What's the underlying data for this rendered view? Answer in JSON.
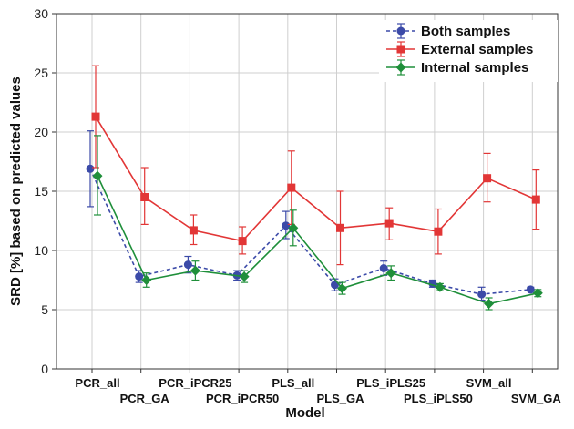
{
  "chart_data": {
    "type": "line",
    "xlabel": "Model",
    "ylabel": "SRD [%] based on predicted values",
    "ylim": [
      0,
      30
    ],
    "yticks": [
      0,
      5,
      10,
      15,
      20,
      25,
      30
    ],
    "grid": true,
    "legend_position": "top-right",
    "categories": [
      "PCR_all",
      "PCR_GA",
      "PCR_iPCR25",
      "PCR_iPCR50",
      "PLS_all",
      "PLS_GA",
      "PLS_iPLS25",
      "PLS_iPLS50",
      "SVM_all",
      "SVM_GA"
    ],
    "series": [
      {
        "name": "Both samples",
        "color": "#3b4aa8",
        "line_style": "dashed",
        "marker": "circle",
        "values": [
          16.9,
          7.8,
          8.8,
          7.9,
          12.1,
          7.1,
          8.5,
          7.2,
          6.3,
          6.7
        ],
        "err_low": [
          13.7,
          7.3,
          8.1,
          7.5,
          11.0,
          6.6,
          7.9,
          6.9,
          5.8,
          6.6
        ],
        "err_high": [
          20.1,
          8.3,
          9.5,
          8.3,
          13.3,
          7.6,
          9.1,
          7.5,
          6.9,
          6.9
        ]
      },
      {
        "name": "External samples",
        "color": "#e23636",
        "line_style": "solid",
        "marker": "square",
        "values": [
          21.3,
          14.5,
          11.7,
          10.8,
          15.3,
          11.9,
          12.3,
          11.6,
          16.1,
          14.3
        ],
        "err_low": [
          17.0,
          12.2,
          10.5,
          9.7,
          12.2,
          8.8,
          10.9,
          9.7,
          14.1,
          11.8
        ],
        "err_high": [
          25.6,
          17.0,
          13.0,
          12.0,
          18.4,
          15.0,
          13.6,
          13.5,
          18.2,
          16.8
        ]
      },
      {
        "name": "Internal samples",
        "color": "#1f8f3a",
        "line_style": "solid",
        "marker": "diamond",
        "values": [
          16.3,
          7.5,
          8.3,
          7.8,
          11.9,
          6.8,
          8.1,
          6.9,
          5.5,
          6.4
        ],
        "err_low": [
          13.0,
          6.9,
          7.5,
          7.3,
          10.4,
          6.3,
          7.5,
          6.6,
          5.0,
          6.1
        ],
        "err_high": [
          19.7,
          8.1,
          9.1,
          8.3,
          13.4,
          7.3,
          8.7,
          7.2,
          6.0,
          6.7
        ]
      }
    ]
  }
}
